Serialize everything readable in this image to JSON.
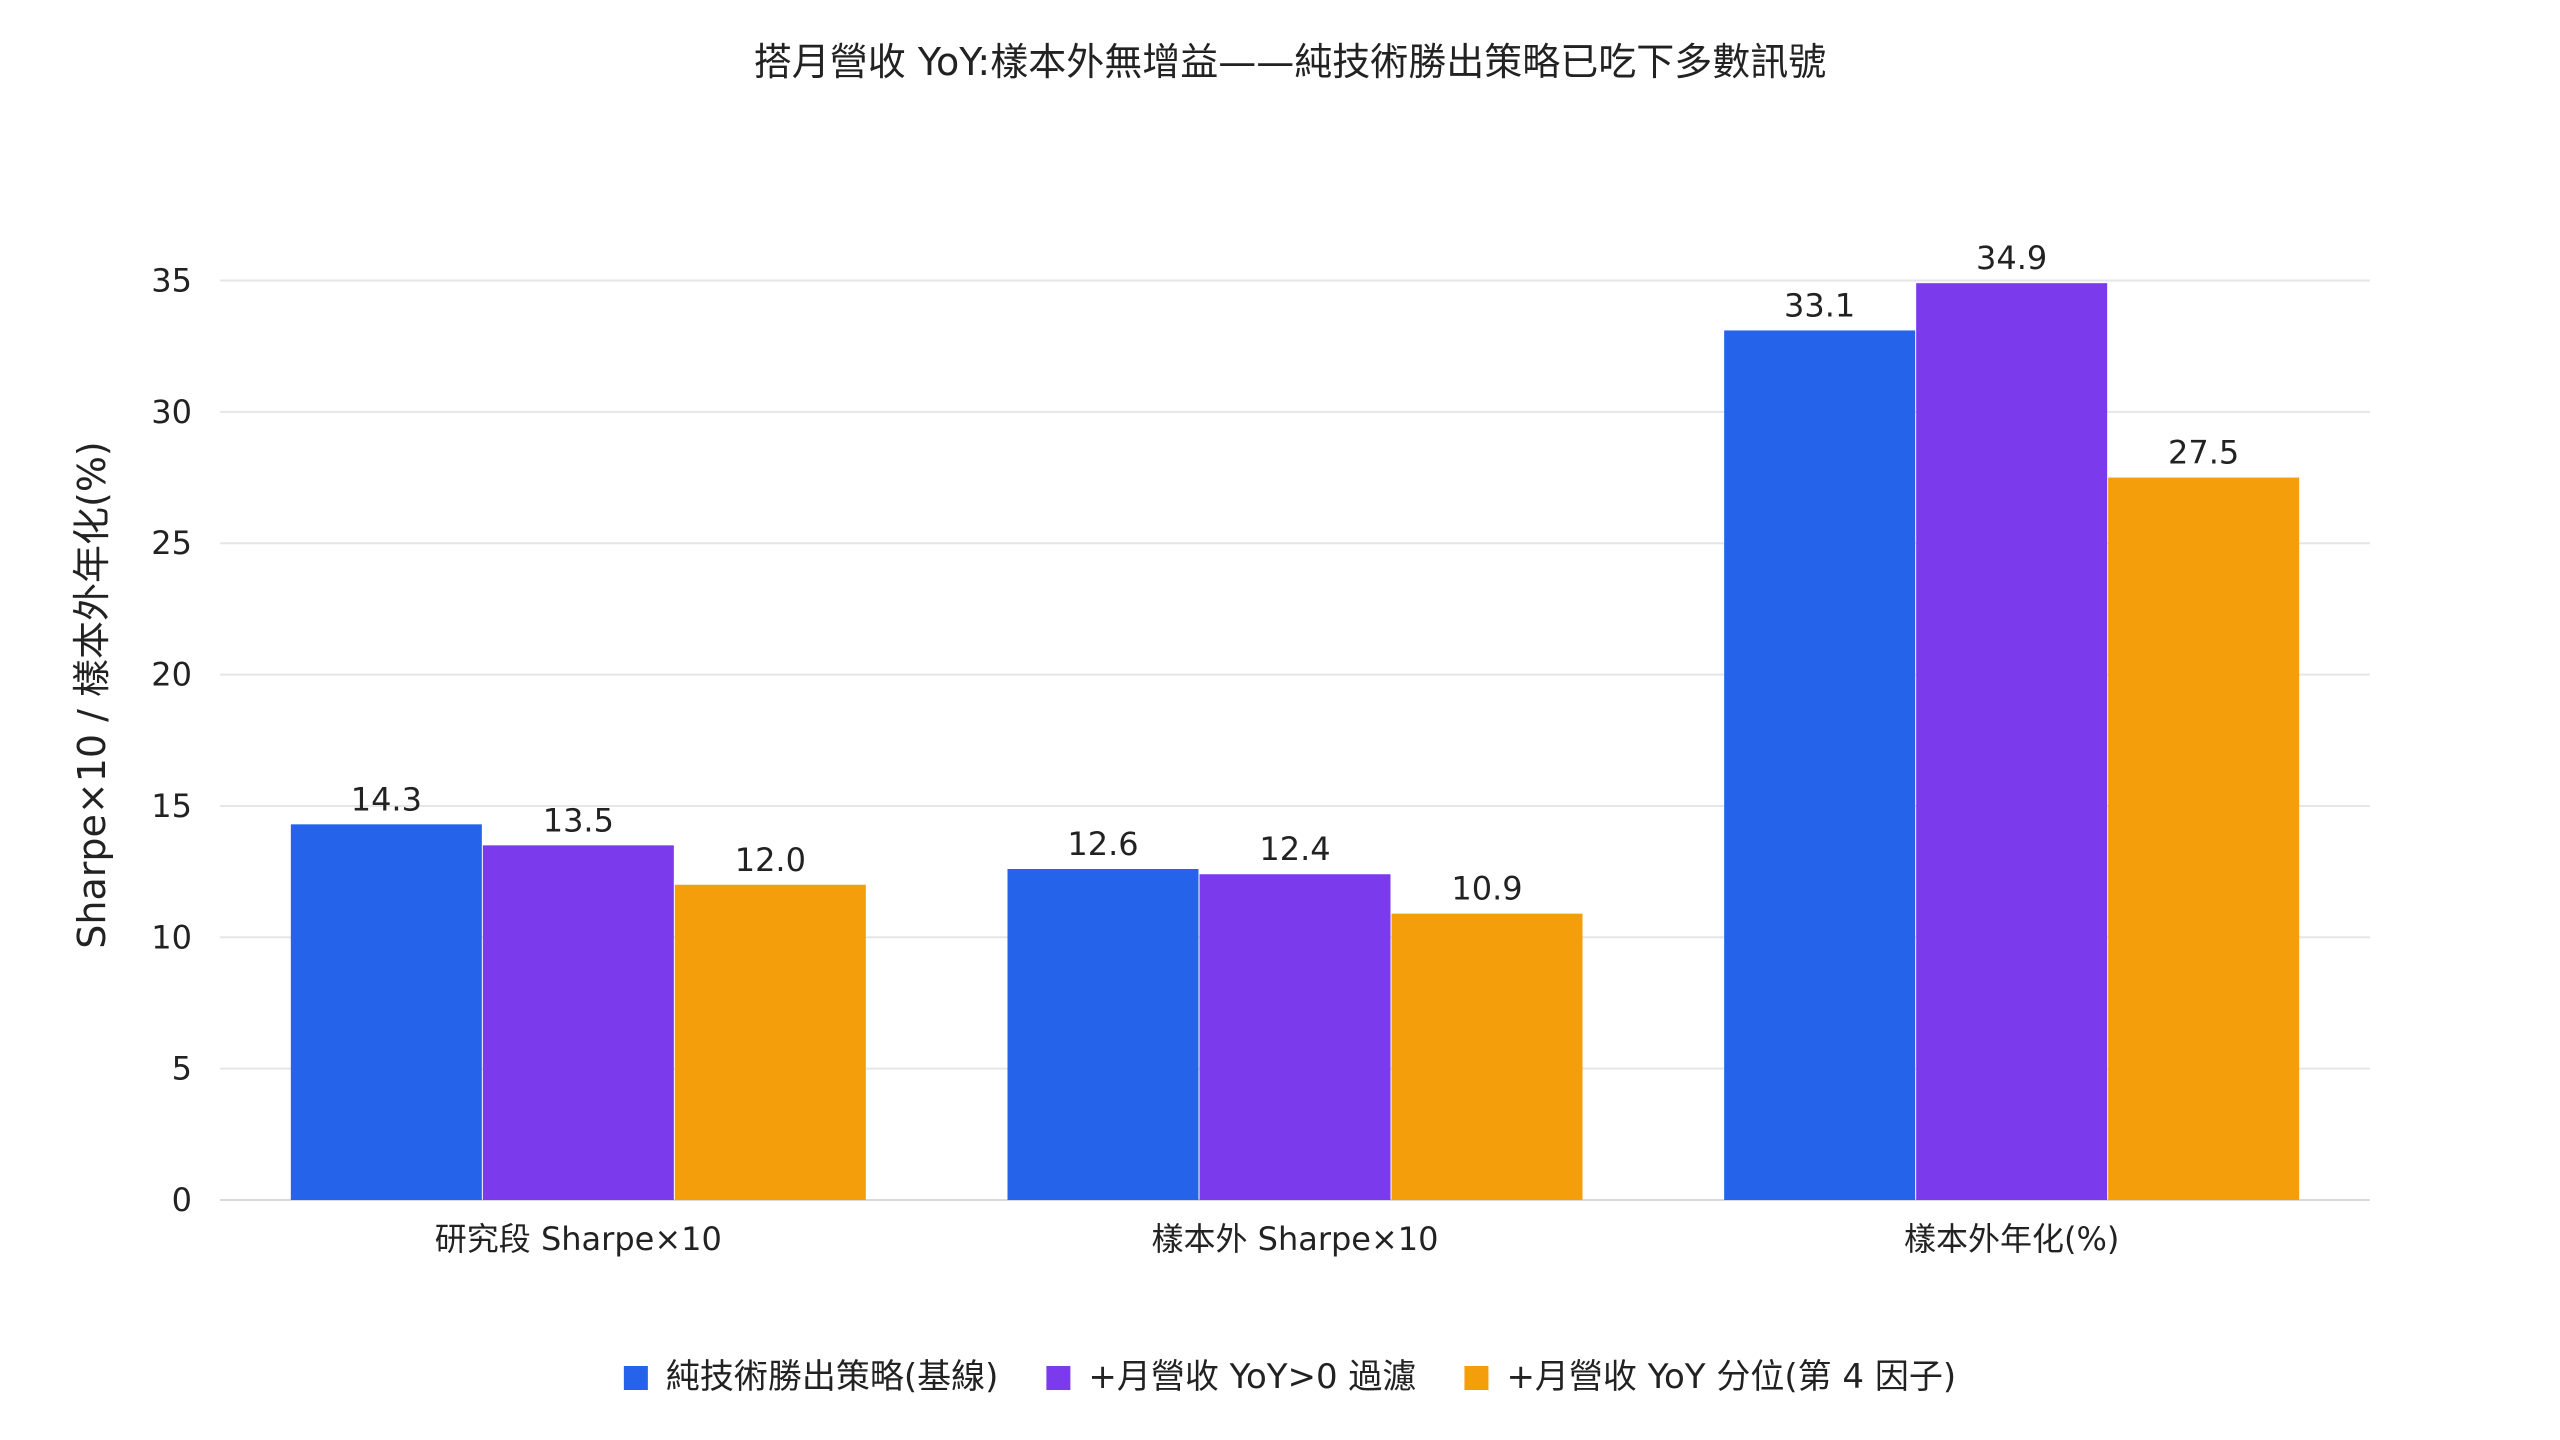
{
  "chart_data": {
    "type": "bar",
    "title": "搭月營收 YoY:樣本外無增益——純技術勝出策略已吃下多數訊號",
    "xlabel": "",
    "ylabel": "Sharpe×10 / 樣本外年化(%)",
    "categories": [
      "研究段 Sharpe×10",
      "樣本外 Sharpe×10",
      "樣本外年化(%)"
    ],
    "ylim": [
      0,
      37
    ],
    "yticks": [
      0,
      5,
      10,
      15,
      20,
      25,
      30,
      35
    ],
    "grid": true,
    "legend_position": "bottom",
    "series": [
      {
        "name": "純技術勝出策略(基線)",
        "color": "#2563EB",
        "values": [
          14.3,
          12.6,
          33.1
        ]
      },
      {
        "name": "+月營收 YoY>0 過濾",
        "color": "#7C3AED",
        "values": [
          13.5,
          12.4,
          34.9
        ]
      },
      {
        "name": "+月營收 YoY 分位(第 4 因子)",
        "color": "#F59E0B",
        "values": [
          12.0,
          10.9,
          27.5
        ]
      }
    ]
  }
}
